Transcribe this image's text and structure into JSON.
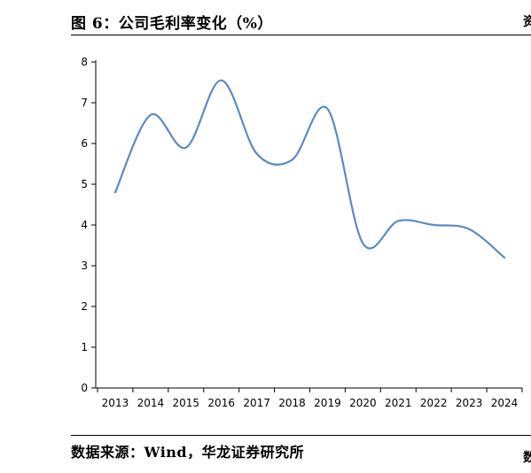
{
  "page": {
    "title": "图 6：公司毛利率变化（%）",
    "source": "数据来源：Wind，华龙证券研究所",
    "edge_glyph_top": "资",
    "edge_glyph_bottom": "数"
  },
  "chart_data": {
    "type": "line",
    "title": "",
    "xlabel": "",
    "ylabel": "",
    "categories": [
      "2013",
      "2014",
      "2015",
      "2016",
      "2017",
      "2018",
      "2019",
      "2020",
      "2021",
      "2022",
      "2023",
      "2024"
    ],
    "series": [
      {
        "values": [
          4.8,
          6.7,
          5.9,
          7.55,
          5.75,
          5.6,
          6.85,
          3.55,
          4.1,
          4.0,
          3.9,
          3.2
        ]
      }
    ],
    "ylim": [
      0,
      8
    ],
    "yticks": [
      0,
      1,
      2,
      3,
      4,
      5,
      6,
      7,
      8
    ],
    "grid": false,
    "legend": "none",
    "line_color": "#5b8ac5",
    "smooth": true
  }
}
